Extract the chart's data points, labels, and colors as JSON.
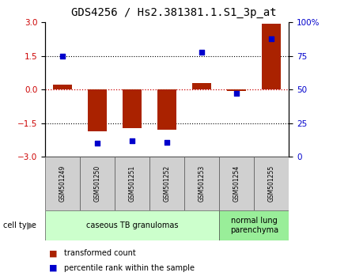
{
  "title": "GDS4256 / Hs2.381381.1.S1_3p_at",
  "samples": [
    "GSM501249",
    "GSM501250",
    "GSM501251",
    "GSM501252",
    "GSM501253",
    "GSM501254",
    "GSM501255"
  ],
  "bar_values": [
    0.22,
    -1.85,
    -1.72,
    -1.8,
    0.3,
    -0.05,
    2.95
  ],
  "percentile_ranks": [
    75,
    10,
    12,
    11,
    78,
    47,
    88
  ],
  "bar_color": "#aa2200",
  "dot_color": "#0000cc",
  "ylim": [
    -3,
    3
  ],
  "yticks_left": [
    -3,
    -1.5,
    0,
    1.5,
    3
  ],
  "yticks_right": [
    0,
    25,
    50,
    75,
    100
  ],
  "zero_line_color": "#cc0000",
  "groups": [
    {
      "label": "caseous TB granulomas",
      "start": 0,
      "end": 4,
      "color": "#ccffcc"
    },
    {
      "label": "normal lung\nparenchyma",
      "start": 5,
      "end": 6,
      "color": "#99ee99"
    }
  ],
  "cell_type_label": "cell type",
  "legend_items": [
    {
      "color": "#aa2200",
      "label": "transformed count"
    },
    {
      "color": "#0000cc",
      "label": "percentile rank within the sample"
    }
  ],
  "bar_width": 0.55,
  "title_fontsize": 10,
  "tick_fontsize": 7.5,
  "sample_fontsize": 5.5,
  "group_fontsize": 7,
  "legend_fontsize": 7,
  "background_color": "#ffffff",
  "plot_bg_color": "#ffffff",
  "left_axis_color": "#cc0000",
  "right_axis_color": "#0000cc",
  "sample_box_color": "#d0d0d0",
  "cell_arrow_color": "#888888"
}
